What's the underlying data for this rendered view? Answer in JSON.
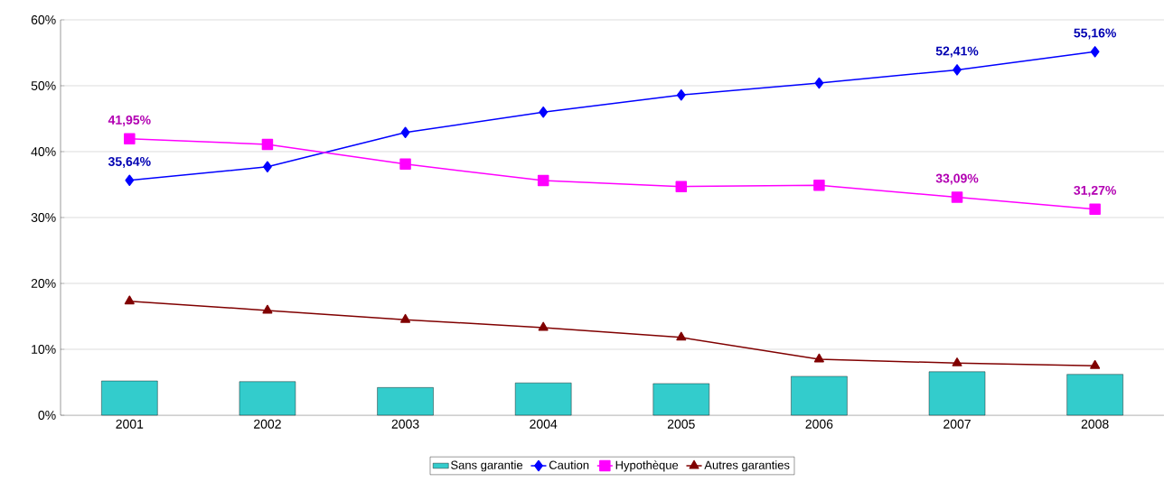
{
  "chart_data": {
    "type": "line",
    "categories": [
      "2001",
      "2002",
      "2003",
      "2004",
      "2005",
      "2006",
      "2007",
      "2008"
    ],
    "ylim": [
      0,
      60
    ],
    "yticks": [
      {
        "value": 0,
        "label": "0%"
      },
      {
        "value": 10,
        "label": "10%"
      },
      {
        "value": 20,
        "label": "20%"
      },
      {
        "value": 30,
        "label": "30%"
      },
      {
        "value": 40,
        "label": "40%"
      },
      {
        "value": 50,
        "label": "50%"
      },
      {
        "value": 60,
        "label": "60%"
      }
    ],
    "grid": "y",
    "legend": "bottom",
    "series": [
      {
        "name": "Sans garantie",
        "type": "bar",
        "color": "#33cccc",
        "values": [
          5.2,
          5.1,
          4.2,
          4.9,
          4.8,
          5.9,
          6.6,
          6.2
        ]
      },
      {
        "name": "Caution",
        "color": "#0000ff",
        "marker": "diamond",
        "values": [
          35.64,
          37.7,
          42.9,
          46.0,
          48.6,
          50.4,
          52.41,
          55.16
        ],
        "value_labels": [
          "35,64%",
          null,
          null,
          null,
          null,
          null,
          "52,41%",
          "55,16%"
        ]
      },
      {
        "name": "Hypothèque",
        "color": "#ff00ff",
        "marker": "square",
        "values": [
          41.95,
          41.1,
          38.1,
          35.6,
          34.7,
          34.9,
          33.09,
          31.27
        ],
        "value_labels": [
          "41,95%",
          null,
          null,
          null,
          null,
          null,
          "33,09%",
          "31,27%"
        ]
      },
      {
        "name": "Autres garanties",
        "color": "#800000",
        "marker": "triangle",
        "values": [
          17.3,
          15.9,
          14.5,
          13.3,
          11.8,
          8.5,
          7.9,
          7.5
        ]
      }
    ]
  }
}
